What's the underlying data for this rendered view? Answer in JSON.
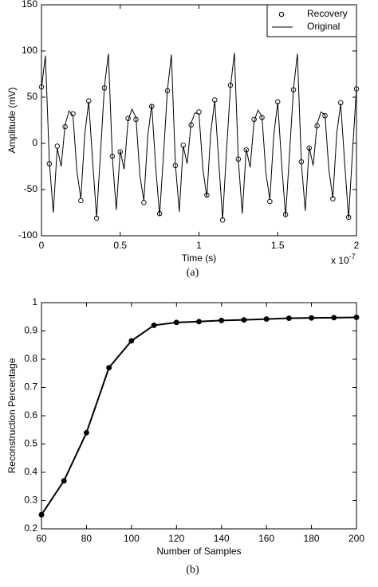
{
  "chart_data": [
    {
      "type": "line",
      "caption": "(a)",
      "xlabel": "Time (s)",
      "ylabel": "Amplitude (mV)",
      "x_multiplier": "x 10",
      "x_exponent": "-7",
      "xlim": [
        0,
        2
      ],
      "xticks": [
        0,
        0.5,
        1,
        1.5,
        2
      ],
      "ylim": [
        -100,
        150
      ],
      "yticks": [
        -100,
        -50,
        0,
        50,
        100,
        150
      ],
      "legend": "upper right",
      "series": [
        {
          "name": "Recovery",
          "color": "#000000",
          "marker": "circle",
          "line": false,
          "x": [
            0,
            0.05,
            0.1,
            0.15,
            0.2,
            0.25,
            0.3,
            0.35,
            0.4,
            0.45,
            0.5,
            0.55,
            0.6,
            0.65,
            0.7,
            0.75,
            0.8,
            0.85,
            0.9,
            0.95,
            1,
            1.05,
            1.1,
            1.15,
            1.2,
            1.25,
            1.3,
            1.35,
            1.4,
            1.45,
            1.5,
            1.55,
            1.6,
            1.65,
            1.7,
            1.75,
            1.8,
            1.85,
            1.9,
            1.95,
            2
          ],
          "values": [
            61,
            -22,
            -3,
            18,
            32,
            -62,
            46,
            -81,
            60,
            -14,
            -9,
            27,
            26,
            -64,
            40,
            -76,
            57,
            -24,
            -2,
            20,
            34,
            -56,
            47,
            -83,
            63,
            -17,
            -7,
            26,
            28,
            -63,
            45,
            -77,
            58,
            -20,
            -5,
            19,
            30,
            -60,
            44,
            -80,
            59
          ]
        },
        {
          "name": "Original",
          "color": "#000000",
          "marker": "none",
          "line": true,
          "x": [
            0,
            0.025,
            0.05,
            0.075,
            0.1,
            0.125,
            0.15,
            0.175,
            0.2,
            0.225,
            0.25,
            0.275,
            0.3,
            0.325,
            0.35,
            0.375,
            0.4,
            0.425,
            0.45,
            0.475,
            0.5,
            0.525,
            0.55,
            0.575,
            0.6,
            0.625,
            0.65,
            0.675,
            0.7,
            0.725,
            0.75,
            0.775,
            0.8,
            0.825,
            0.85,
            0.875,
            0.9,
            0.925,
            0.95,
            0.975,
            1,
            1.025,
            1.05,
            1.075,
            1.1,
            1.125,
            1.15,
            1.175,
            1.2,
            1.225,
            1.25,
            1.275,
            1.3,
            1.325,
            1.35,
            1.375,
            1.4,
            1.425,
            1.45,
            1.475,
            1.5,
            1.525,
            1.55,
            1.575,
            1.6,
            1.625,
            1.65,
            1.675,
            1.7,
            1.725,
            1.75,
            1.775,
            1.8,
            1.825,
            1.85,
            1.875,
            1.9,
            1.925,
            1.95,
            1.975,
            2
          ],
          "values": [
            60,
            95,
            -20,
            -75,
            -5,
            -25,
            20,
            35,
            30,
            -30,
            -60,
            10,
            45,
            -20,
            -80,
            -10,
            62,
            97,
            -15,
            -72,
            -8,
            -28,
            25,
            37,
            28,
            -35,
            -62,
            8,
            42,
            -25,
            -78,
            -12,
            58,
            96,
            -22,
            -74,
            -3,
            -22,
            22,
            33,
            32,
            -28,
            -58,
            12,
            46,
            -18,
            -82,
            -8,
            61,
            98,
            -18,
            -76,
            -6,
            -26,
            24,
            36,
            29,
            -32,
            -61,
            9,
            44,
            -22,
            -79,
            -11,
            59,
            97,
            -21,
            -73,
            -4,
            -24,
            21,
            34,
            31,
            -29,
            -59,
            11,
            43,
            -21,
            -81,
            -9,
            60
          ]
        }
      ]
    },
    {
      "type": "line",
      "caption": "(b)",
      "xlabel": "Number of Samples",
      "ylabel": "Reconstruction Percentage",
      "xlim": [
        60,
        200
      ],
      "xticks": [
        60,
        80,
        100,
        120,
        140,
        160,
        180,
        200
      ],
      "ylim": [
        0.2,
        1
      ],
      "yticks": [
        0.2,
        0.3,
        0.4,
        0.5,
        0.6,
        0.7,
        0.8,
        0.9,
        1
      ],
      "series": [
        {
          "color": "#000000",
          "marker": "dot",
          "line": true,
          "x": [
            60,
            70,
            80,
            90,
            100,
            110,
            120,
            130,
            140,
            150,
            160,
            170,
            180,
            190,
            200
          ],
          "values": [
            0.25,
            0.37,
            0.54,
            0.77,
            0.865,
            0.92,
            0.93,
            0.933,
            0.937,
            0.939,
            0.942,
            0.945,
            0.946,
            0.947,
            0.948
          ]
        }
      ]
    }
  ]
}
